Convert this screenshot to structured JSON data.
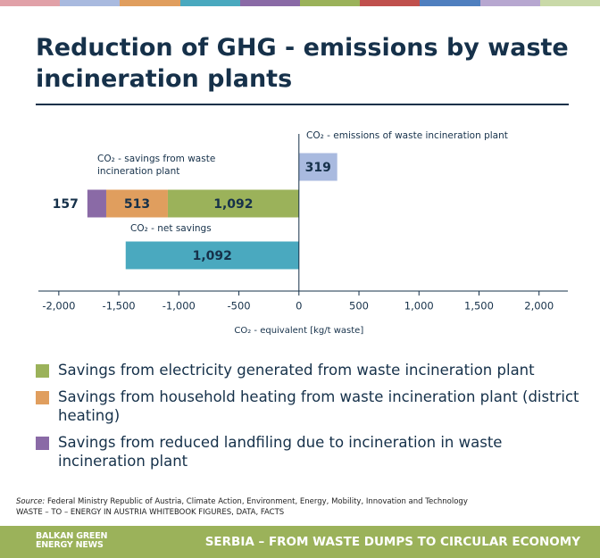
{
  "chart_data": {
    "type": "bar",
    "orientation": "horizontal",
    "stacked": true,
    "title": "Reduction of GHG - emissions by waste incineration plants",
    "categories": [
      "CO₂ - emissions of waste incineration plant",
      "CO₂ - savings from waste incineration plant",
      "CO₂ - net savings"
    ],
    "series": [
      {
        "color": "#a9badf",
        "values": [
          319,
          null,
          null
        ],
        "value_labels": [
          "319",
          null,
          null
        ]
      },
      {
        "name": "Savings from electricity generated from waste incineration plant",
        "color": "#9bb25a",
        "values": [
          null,
          -1092,
          null
        ],
        "value_labels": [
          null,
          "1,092",
          null
        ]
      },
      {
        "name": "Savings from household heating from waste incineration plant (district heating)",
        "color": "#e09e5e",
        "values": [
          null,
          -513,
          null
        ],
        "value_labels": [
          null,
          "513",
          null
        ]
      },
      {
        "name": "Savings from reduced landfiling due to incineration in waste incineration plant",
        "color": "#8a6aa6",
        "values": [
          null,
          -157,
          null
        ],
        "value_labels": [
          null,
          "157",
          null
        ]
      },
      {
        "color": "#4aa9bf",
        "values": [
          null,
          null,
          -1443
        ]
      }
    ],
    "annotations": [
      "1,092"
    ],
    "xlabel": "CO₂ - equivalent [kg/t waste]",
    "xlim": [
      -2170,
      2240
    ],
    "xticks": [
      {
        "value": -2000,
        "label": "-2,000"
      },
      {
        "value": -1500,
        "label": "-1,500"
      },
      {
        "value": -1000,
        "label": "-1,000"
      },
      -500,
      0,
      500,
      {
        "value": 1000,
        "label": "1,000"
      },
      {
        "value": 1500,
        "label": "1,500"
      },
      {
        "value": 2000,
        "label": "2,000"
      }
    ],
    "source": {
      "label": "Source:",
      "lines": [
        "Federal Ministry Republic of Austria, Climate Action, Environment, Energy, Mobility, Innovation and Technology",
        "WASTE – TO – ENERGY IN AUSTRIA WHITEBOOK FIGURES, DATA, FACTS"
      ]
    },
    "footer": {
      "brand": [
        "BALKAN GREEN",
        "ENERGY NEWS"
      ],
      "title": "SERBIA – FROM WASTE DUMPS TO CIRCULAR ECONOMY"
    }
  }
}
